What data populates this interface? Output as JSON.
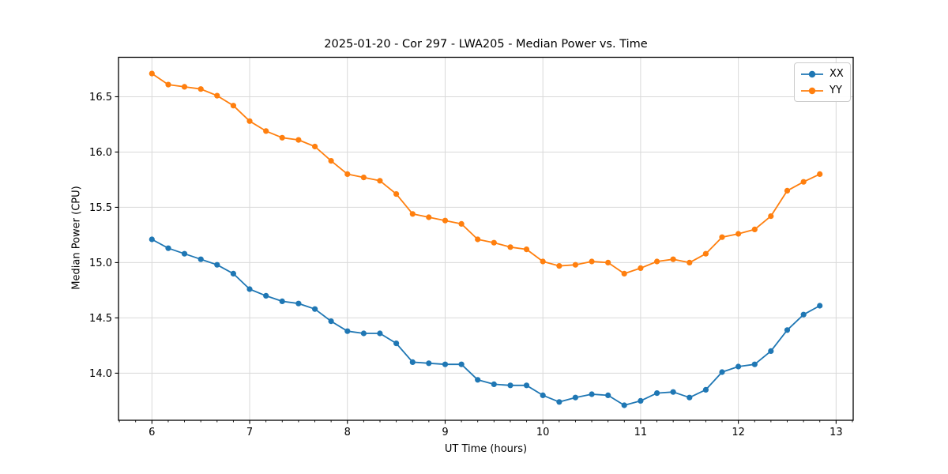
{
  "chart_data": {
    "type": "line",
    "title": "2025-01-20 - Cor 297 - LWA205 - Median Power vs. Time",
    "xlabel": "UT Time (hours)",
    "ylabel": "Median Power (CPU)",
    "xlim": [
      5.658,
      13.175
    ],
    "ylim": [
      13.574,
      16.857
    ],
    "xtick_values": [
      6,
      7,
      8,
      9,
      10,
      11,
      12,
      13
    ],
    "xtick_labels": [
      "6",
      "7",
      "8",
      "9",
      "10",
      "11",
      "12",
      "13"
    ],
    "ytick_values": [
      14.0,
      14.5,
      15.0,
      15.5,
      16.0,
      16.5
    ],
    "ytick_labels": [
      "14.0",
      "14.5",
      "15.0",
      "15.5",
      "16.0",
      "16.5"
    ],
    "x_minor_tick_step": 0.1667,
    "grid": true,
    "grid_color": "#d9d9d9",
    "axis_color": "#000000",
    "legend_position": "upper right",
    "x": [
      6.0,
      6.167,
      6.333,
      6.5,
      6.667,
      6.833,
      7.0,
      7.167,
      7.333,
      7.5,
      7.667,
      7.833,
      8.0,
      8.167,
      8.333,
      8.5,
      8.667,
      8.833,
      9.0,
      9.167,
      9.333,
      9.5,
      9.667,
      9.833,
      10.0,
      10.167,
      10.333,
      10.5,
      10.667,
      10.833,
      11.0,
      11.167,
      11.333,
      11.5,
      11.667,
      11.833,
      12.0,
      12.167,
      12.333,
      12.5,
      12.667,
      12.833
    ],
    "series": [
      {
        "name": "XX",
        "color": "#1f77b4",
        "marker": "circle",
        "values": [
          15.21,
          15.13,
          15.08,
          15.03,
          14.98,
          14.9,
          14.76,
          14.7,
          14.65,
          14.63,
          14.58,
          14.47,
          14.38,
          14.36,
          14.36,
          14.27,
          14.1,
          14.09,
          14.08,
          14.08,
          13.94,
          13.9,
          13.89,
          13.89,
          13.8,
          13.74,
          13.78,
          13.81,
          13.8,
          13.71,
          13.75,
          13.82,
          13.83,
          13.78,
          13.85,
          14.01,
          14.06,
          14.08,
          14.2,
          14.39,
          14.53,
          14.61
        ]
      },
      {
        "name": "YY",
        "color": "#ff7f0e",
        "marker": "circle",
        "values": [
          16.71,
          16.61,
          16.59,
          16.57,
          16.51,
          16.42,
          16.28,
          16.19,
          16.13,
          16.11,
          16.05,
          15.92,
          15.8,
          15.77,
          15.74,
          15.62,
          15.44,
          15.41,
          15.38,
          15.35,
          15.21,
          15.18,
          15.14,
          15.12,
          15.01,
          14.97,
          14.98,
          15.01,
          15.0,
          14.9,
          14.95,
          15.01,
          15.03,
          15.0,
          15.08,
          15.23,
          15.26,
          15.3,
          15.42,
          15.65,
          15.73,
          15.8
        ]
      }
    ]
  }
}
